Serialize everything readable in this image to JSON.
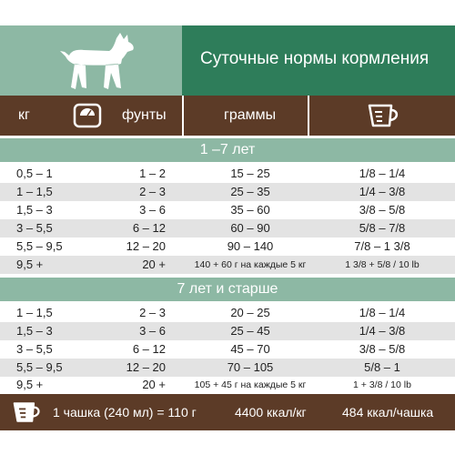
{
  "header": {
    "title": "Суточные нормы кормления"
  },
  "columns": {
    "kg": "кг",
    "lb": "фунты",
    "grams": "граммы"
  },
  "sections": [
    {
      "title": "1 –7 лет",
      "rows": [
        {
          "kg": "0,5 – 1",
          "lb": "1 – 2",
          "grams": "15 – 25",
          "cups": "1/8 – 1/4"
        },
        {
          "kg": "1 – 1,5",
          "lb": "2 – 3",
          "grams": "25 – 35",
          "cups": "1/4 – 3/8"
        },
        {
          "kg": "1,5 – 3",
          "lb": "3 – 6",
          "grams": "35 – 60",
          "cups": "3/8 – 5/8"
        },
        {
          "kg": "3 – 5,5",
          "lb": "6 – 12",
          "grams": "60 – 90",
          "cups": "5/8 – 7/8"
        },
        {
          "kg": "5,5 – 9,5",
          "lb": "12 – 20",
          "grams": "90 – 140",
          "cups": "7/8 – 1 3/8"
        },
        {
          "kg": "9,5 +",
          "lb": "20 +",
          "grams": "140 + 60 г на каждые 5 кг",
          "cups": "1 3/8 + 5/8 / 10 lb"
        }
      ]
    },
    {
      "title": "7 лет и старше",
      "rows": [
        {
          "kg": "1 – 1,5",
          "lb": "2 – 3",
          "grams": "20 – 25",
          "cups": "1/8 – 1/4"
        },
        {
          "kg": "1,5 – 3",
          "lb": "3 – 6",
          "grams": "25 – 45",
          "cups": "1/4 – 3/8"
        },
        {
          "kg": "3 – 5,5",
          "lb": "6 – 12",
          "grams": "45 – 70",
          "cups": "3/8 – 5/8"
        },
        {
          "kg": "5,5 – 9,5",
          "lb": "12 – 20",
          "grams": "70 – 105",
          "cups": "5/8 – 1"
        },
        {
          "kg": "9,5 +",
          "lb": "20 +",
          "grams": "105 + 45 г на каждые 5 кг",
          "cups": "1 + 3/8 / 10 lb"
        }
      ]
    }
  ],
  "footer": {
    "cup": "1 чашка (240 мл) = 110 г",
    "kcal_kg": "4400 ккал/кг",
    "kcal_cup": "484 ккал/чашка"
  },
  "icons": {
    "dog": "dog-silhouette-icon",
    "scale": "scale-icon",
    "cup": "measuring-cup-icon"
  },
  "colors": {
    "green_dark": "#2e7d5a",
    "green_light": "#8db8a4",
    "brown": "#5c3b27",
    "row_alt": "#e3e3e3"
  }
}
